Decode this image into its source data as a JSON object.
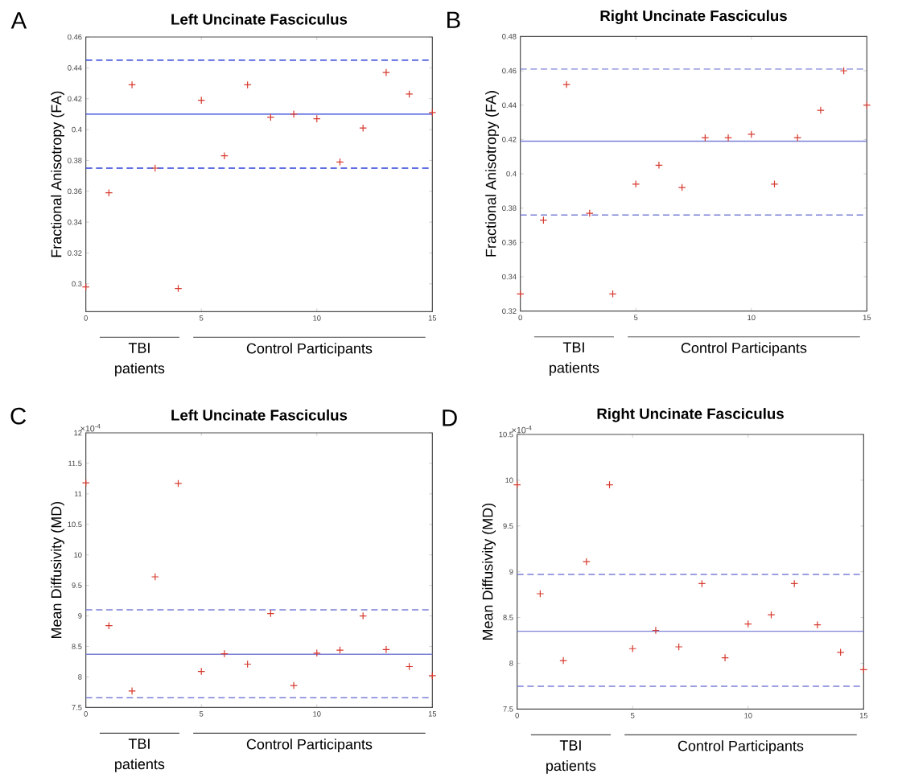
{
  "chart_data": [
    {
      "type": "scatter",
      "title": "Left Uncinate Fasciculus",
      "ylabel": "Fractional Anisotropy (FA)",
      "marker": "cross",
      "xlim": [
        0,
        15
      ],
      "xticks": [
        0,
        5,
        10,
        15
      ],
      "ylim": [
        0.282,
        0.46
      ],
      "yticks": [
        0.3,
        0.32,
        0.34,
        0.36,
        0.38,
        0.4,
        0.42,
        0.44,
        0.46
      ],
      "x": [
        0,
        1,
        2,
        3,
        4,
        5,
        6,
        7,
        8,
        9,
        10,
        11,
        12,
        13,
        14,
        15
      ],
      "series": [
        {
          "color": "#d63a2e",
          "values": [
            0.298,
            0.359,
            0.429,
            0.375,
            0.297,
            0.419,
            0.383,
            0.429,
            0.408,
            0.41,
            0.407,
            0.379,
            0.401,
            0.437,
            0.423,
            0.411
          ]
        }
      ],
      "ref_lines": [
        {
          "axis": "y",
          "value": 0.41,
          "color": "#2b3fd8",
          "line_style": "solid"
        },
        {
          "axis": "y",
          "value": 0.445,
          "color": "#2b3fd8",
          "line_style": "dashed"
        },
        {
          "axis": "y",
          "value": 0.375,
          "color": "#2b3fd8",
          "line_style": "dashed"
        }
      ],
      "annotations": [
        "A",
        "TBI patients",
        "Control Participants"
      ]
    },
    {
      "type": "scatter",
      "title": "Right Uncinate Fasciculus",
      "ylabel": "Fractional Anisotropy (FA)",
      "marker": "cross",
      "xlim": [
        0,
        15
      ],
      "xticks": [
        0,
        5,
        10,
        15
      ],
      "ylim": [
        0.32,
        0.48
      ],
      "yticks": [
        0.32,
        0.34,
        0.36,
        0.38,
        0.4,
        0.42,
        0.44,
        0.46,
        0.48
      ],
      "x": [
        0,
        1,
        2,
        3,
        4,
        5,
        6,
        7,
        8,
        9,
        10,
        11,
        12,
        13,
        14,
        15
      ],
      "series": [
        {
          "color": "#d63a2e",
          "values": [
            0.33,
            0.373,
            0.452,
            0.377,
            0.33,
            0.394,
            0.405,
            0.392,
            0.421,
            0.421,
            0.423,
            0.394,
            0.421,
            0.437,
            0.46,
            0.44
          ]
        }
      ],
      "ref_lines": [
        {
          "axis": "y",
          "value": 0.419,
          "color": "#7b80d6",
          "line_style": "solid"
        },
        {
          "axis": "y",
          "value": 0.461,
          "color": "#7b80d6",
          "line_style": "dashed"
        },
        {
          "axis": "y",
          "value": 0.376,
          "color": "#7b80d6",
          "line_style": "dashed"
        }
      ],
      "annotations": [
        "B",
        "TBI patients",
        "Control Participants"
      ]
    },
    {
      "type": "scatter",
      "title": "Left Uncinate Fasciculus",
      "ylabel": "Mean Diffusivity (MD)",
      "marker": "cross",
      "xlim": [
        0,
        15
      ],
      "xticks": [
        0,
        5,
        10,
        15
      ],
      "ylim": [
        7.5,
        12
      ],
      "yticks": [
        7.5,
        8,
        8.5,
        9,
        9.5,
        10,
        10.5,
        11,
        11.5,
        12
      ],
      "x": [
        0,
        1,
        2,
        3,
        4,
        5,
        6,
        7,
        8,
        9,
        10,
        11,
        12,
        13,
        14,
        15
      ],
      "series": [
        {
          "color": "#d63a2e",
          "values": [
            11.18,
            8.84,
            7.77,
            9.64,
            11.17,
            8.09,
            8.38,
            8.21,
            9.04,
            7.86,
            8.39,
            8.44,
            9.0,
            8.45,
            8.17,
            8.02
          ]
        }
      ],
      "ref_lines": [
        {
          "axis": "y",
          "value": 8.37,
          "color": "#7b80d6",
          "line_style": "solid"
        },
        {
          "axis": "y",
          "value": 9.1,
          "color": "#7b80d6",
          "line_style": "dashed"
        },
        {
          "axis": "y",
          "value": 7.66,
          "color": "#7b80d6",
          "line_style": "dashed"
        }
      ],
      "annotations": [
        "C",
        "TBI patients",
        "Control Participants",
        "×10$^{-4}$"
      ]
    },
    {
      "type": "scatter",
      "title": "Right Uncinate Fasciculus",
      "ylabel": "Mean Diffusivity (MD)",
      "marker": "cross",
      "xlim": [
        0,
        15
      ],
      "xticks": [
        0,
        5,
        10,
        15
      ],
      "ylim": [
        7.5,
        10.5
      ],
      "yticks": [
        7.5,
        8,
        8.5,
        9,
        9.5,
        10,
        10.5
      ],
      "x": [
        0,
        1,
        2,
        3,
        4,
        5,
        6,
        7,
        8,
        9,
        10,
        11,
        12,
        13,
        14,
        15
      ],
      "series": [
        {
          "color": "#d63a2e",
          "values": [
            9.95,
            8.76,
            8.03,
            9.11,
            9.95,
            8.16,
            8.36,
            8.18,
            8.87,
            8.06,
            8.43,
            8.53,
            8.87,
            8.42,
            8.12,
            7.93
          ]
        }
      ],
      "ref_lines": [
        {
          "axis": "y",
          "value": 8.35,
          "color": "#7b80d6",
          "line_style": "solid"
        },
        {
          "axis": "y",
          "value": 8.97,
          "color": "#7b80d6",
          "line_style": "dashed"
        },
        {
          "axis": "y",
          "value": 7.75,
          "color": "#7b80d6",
          "line_style": "dashed"
        }
      ],
      "annotations": [
        "D",
        "TBI patients",
        "Control Participants",
        "×10$^{-4}$"
      ]
    }
  ]
}
